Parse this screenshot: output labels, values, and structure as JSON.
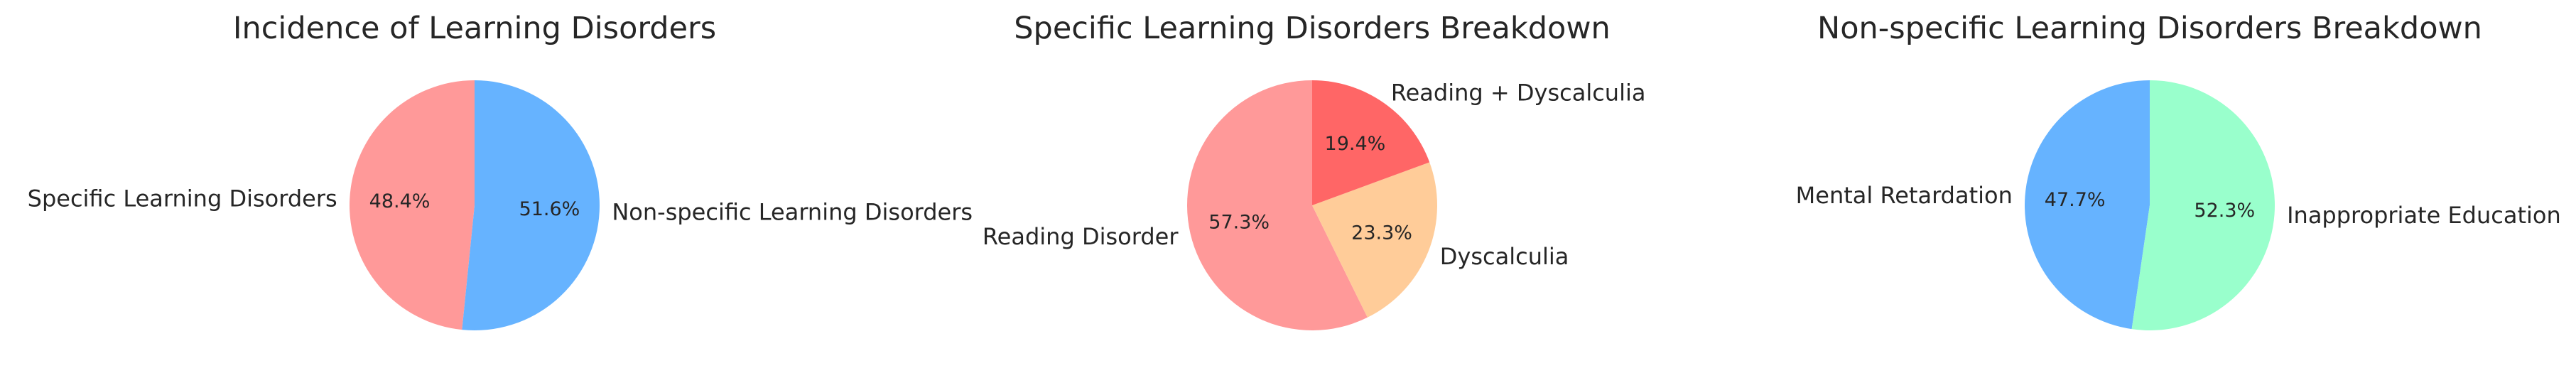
{
  "chart_data": [
    {
      "type": "pie",
      "title": "Incidence of Learning Disorders",
      "labels": [
        "Specific Learning Disorders",
        "Non-specific Learning Disorders"
      ],
      "values": [
        48.4,
        51.6
      ],
      "percent_labels": [
        "48.4%",
        "51.6%"
      ],
      "colors": [
        "#ff9999",
        "#66b3ff"
      ],
      "start_angle_deg": 90,
      "direction": "counterclockwise"
    },
    {
      "type": "pie",
      "title": "Specific Learning Disorders Breakdown",
      "labels": [
        "Reading Disorder",
        "Dyscalculia",
        "Reading + Dyscalculia"
      ],
      "values": [
        57.3,
        23.3,
        19.4
      ],
      "percent_labels": [
        "57.3%",
        "23.3%",
        "19.4%"
      ],
      "colors": [
        "#ff9999",
        "#ffcc99",
        "#ff6666"
      ],
      "start_angle_deg": 90,
      "direction": "counterclockwise"
    },
    {
      "type": "pie",
      "title": "Non-specific Learning Disorders Breakdown",
      "labels": [
        "Mental Retardation",
        "Inappropriate Education"
      ],
      "values": [
        47.7,
        52.3
      ],
      "percent_labels": [
        "47.7%",
        "52.3%"
      ],
      "colors": [
        "#66b3ff",
        "#99ffcc"
      ],
      "start_angle_deg": 90,
      "direction": "counterclockwise"
    }
  ]
}
